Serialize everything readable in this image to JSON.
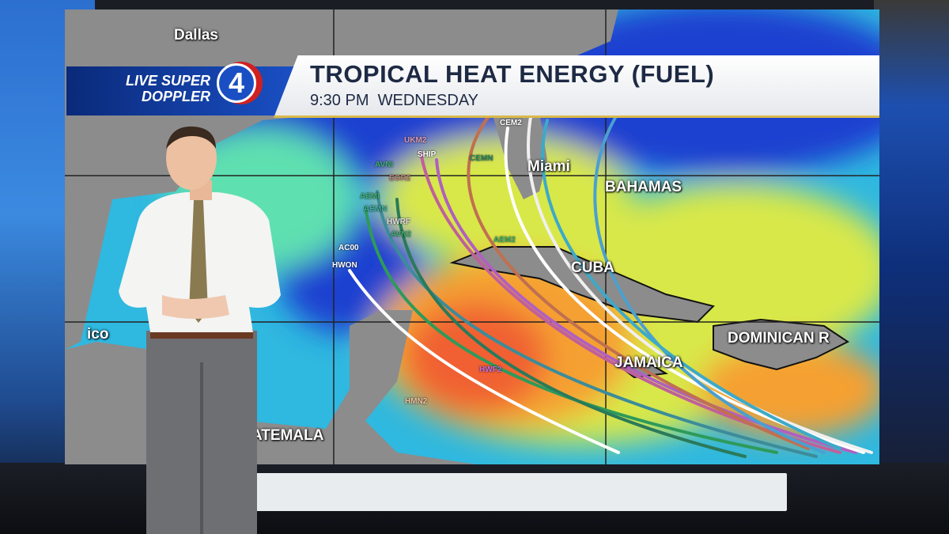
{
  "broadcast": {
    "logo": {
      "line1": "LIVE SUPER",
      "line2": "DOPPLER",
      "channel": "4"
    },
    "title": "TROPICAL HEAT ENERGY (FUEL)",
    "subtitle": "9:30 PM  WEDNESDAY",
    "colors": {
      "logo_blue": "#1a4fc4",
      "logo_red": "#d02020",
      "title_text": "#1e2a44"
    }
  },
  "map": {
    "places": {
      "dallas": "Dallas",
      "miami": "Miami",
      "bahamas": "BAHAMAS",
      "cuba": "CUBA",
      "jamaica": "JAMAICA",
      "dominican": "DOMINICAN R",
      "mexico": "ico",
      "guatemala": "ATEMALA"
    },
    "models": [
      "UKM2",
      "SHIP",
      "CEM2",
      "CEMN",
      "AVNI",
      "EGR2",
      "AEMI",
      "AEMN",
      "HWRF",
      "AVN2",
      "AC00",
      "HWON",
      "AEM2",
      "HWF2",
      "HMN2"
    ],
    "heat_scale": [
      "#1a3fd0",
      "#2fb8e0",
      "#5fe0b0",
      "#d8e84a",
      "#f5a030",
      "#f06030"
    ]
  }
}
